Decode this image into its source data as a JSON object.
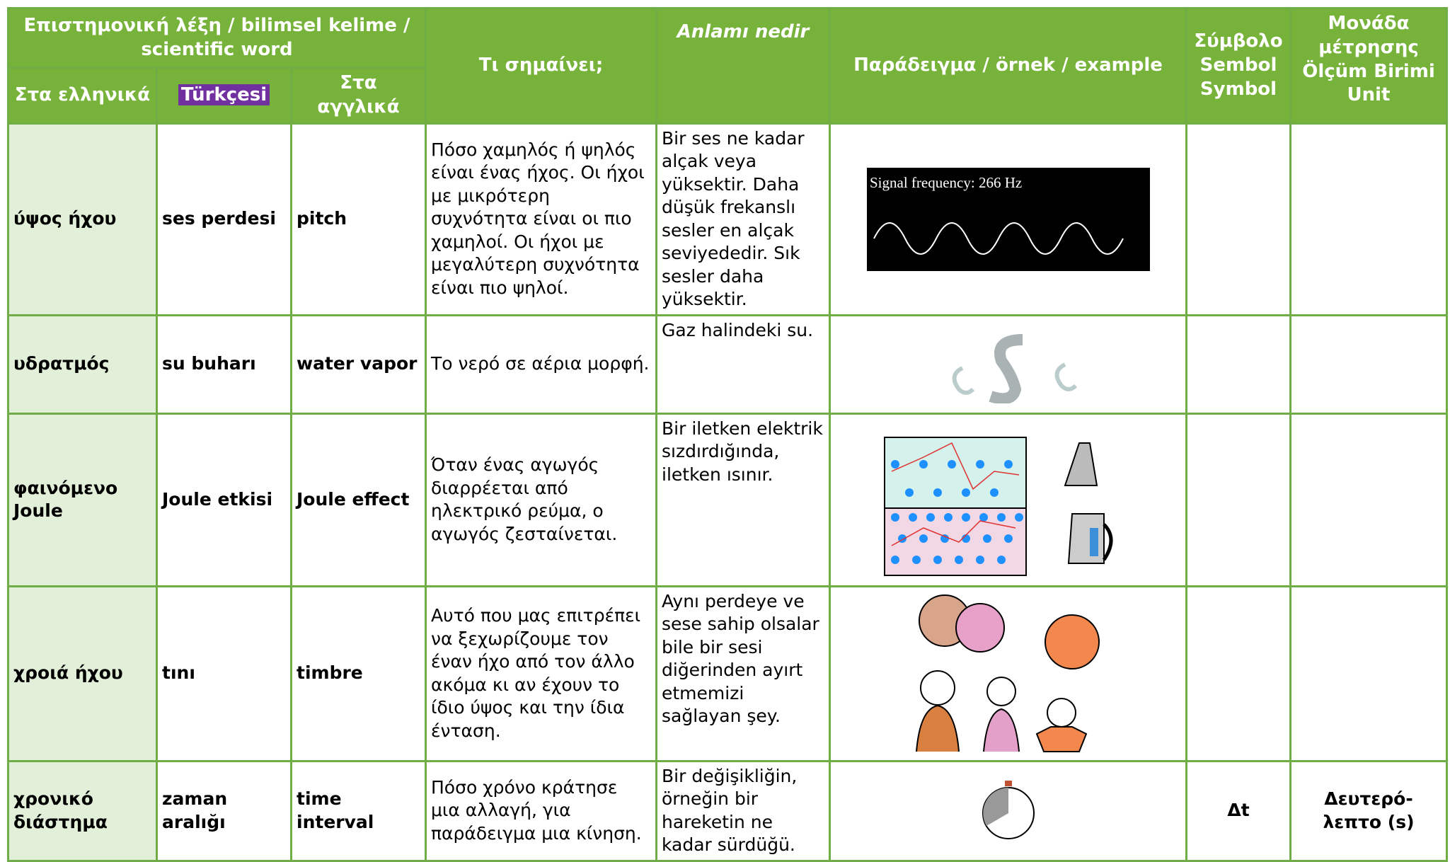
{
  "header": {
    "group_title": "Επιστημονική λέξη / bilimsel kelime / scientific word",
    "sub": [
      "Στα ελληνικά",
      "Türkçesi",
      "Στα αγγλικά"
    ],
    "meaning_gr": "Τι σημαίνει;",
    "meaning_tr": "Anlamı nedir",
    "example": "Παράδειγμα / örnek / example",
    "symbol": "Σύμβολο Sembol Symbol",
    "unit": "Μονάδα μέτρησης Ölçüm Birimi Unit"
  },
  "rows": [
    {
      "greek": "ύψος ήχου",
      "turkish": "ses perdesi",
      "english": "pitch",
      "meaning_gr": "Πόσο χαμηλός ή ψηλός είναι ένας ήχος. Οι ήχοι με μικρότερη συχνότητα είναι οι πιο χαμηλοί. Οι ήχοι με μεγαλύτερη συχνότητα είναι πιο ψηλοί.",
      "meaning_tr": "Bir ses ne kadar alçak veya yüksektir. Daha düşük frekanslı sesler en alçak seviyededir. Sık sesler daha yüksektir.",
      "example_caption": "Signal frequency: 266 Hz"
    },
    {
      "greek": "υδρατμός",
      "turkish": "su buharı",
      "english": "water vapor",
      "meaning_gr": "Το νερό σε αέρια μορφή.",
      "meaning_tr": "Gaz halindeki su."
    },
    {
      "greek": "φαινόμενο Joule",
      "turkish": "Joule etkisi",
      "english": "Joule effect",
      "meaning_gr": "Όταν ένας αγωγός διαρρέεται από ηλεκτρικό ρεύμα, ο αγωγός ζεσταίνεται.",
      "meaning_tr": "Bir iletken elektrik sızdırdığında, iletken ısınır."
    },
    {
      "greek": "χροιά ήχου",
      "turkish": "tını",
      "english": "timbre",
      "meaning_gr": "Αυτό που μας επιτρέπει να ξεχωρίζουμε τον έναν ήχο από τον άλλο ακόμα κι αν έχουν το ίδιο ύψος και την ίδια ένταση.",
      "meaning_tr": "Aynı perdeye ve sese sahip olsalar bile bir sesi diğerinden ayırt etmemizi sağlayan şey."
    },
    {
      "greek": "χρονικό διάστημα",
      "turkish": "zaman aralığı",
      "english": "time interval",
      "meaning_gr": "Πόσο χρόνο κράτησε μια αλλαγή, για παράδειγμα μια κίνηση.",
      "meaning_tr": "Bir değişikliğin, örneğin bir hareketin ne kadar sürdüğü.",
      "symbol": "Δt",
      "unit": "Δευτερό-λεπτο (s)"
    }
  ]
}
